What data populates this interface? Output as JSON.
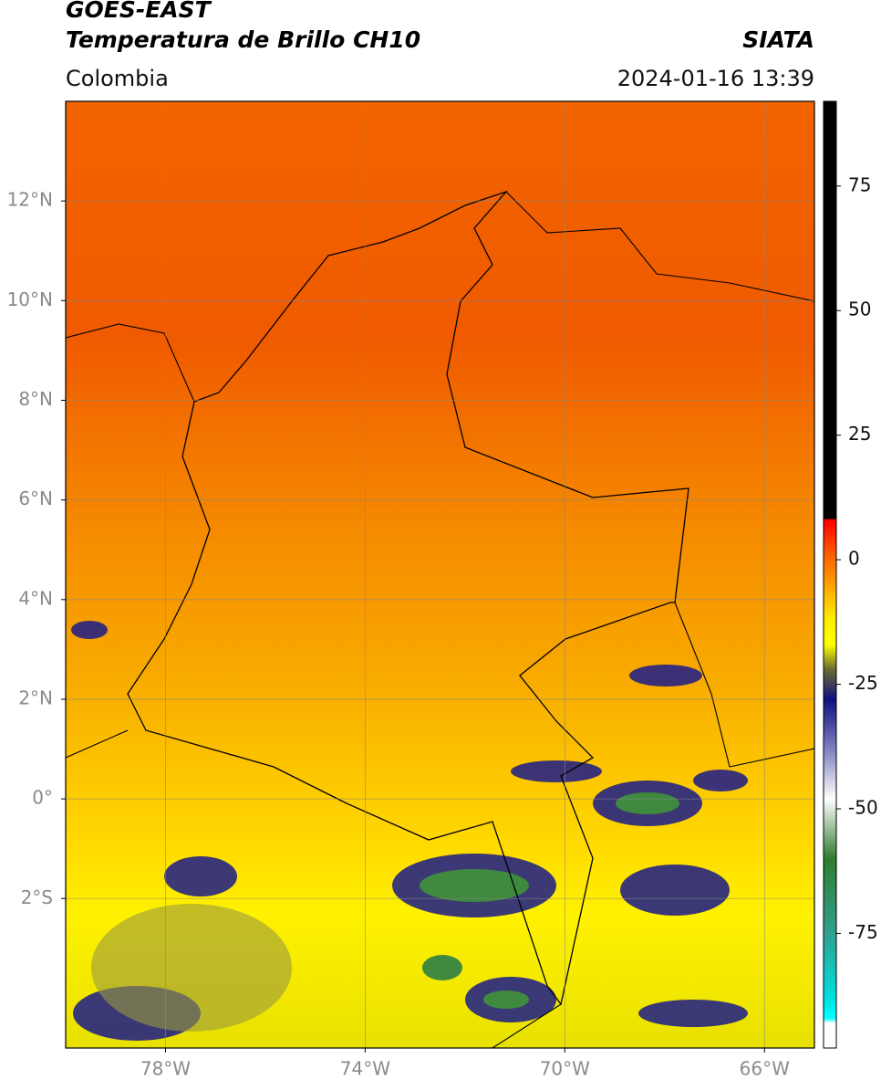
{
  "header": {
    "satellite": "GOES-EAST",
    "product": "Temperatura de Brillo CH10",
    "source": "SIATA",
    "region": "Colombia",
    "timestamp": "2024-01-16 13:39"
  },
  "map": {
    "lonlim": [
      -80,
      -65
    ],
    "latlim": [
      -5,
      14
    ],
    "lonticks": [
      {
        "value": -78,
        "label": "78°W"
      },
      {
        "value": -74,
        "label": "74°W"
      },
      {
        "value": -70,
        "label": "70°W"
      },
      {
        "value": -66,
        "label": "66°W"
      }
    ],
    "latticks": [
      {
        "value": 12,
        "label": "12°N"
      },
      {
        "value": 10,
        "label": "10°N"
      },
      {
        "value": 8,
        "label": "8°N"
      },
      {
        "value": 6,
        "label": "6°N"
      },
      {
        "value": 4,
        "label": "4°N"
      },
      {
        "value": 2,
        "label": "2°N"
      },
      {
        "value": 0,
        "label": "0°"
      },
      {
        "value": -2,
        "label": "2°S"
      }
    ],
    "grid": true
  },
  "colorbar": {
    "lim": [
      -98,
      92
    ],
    "ticks": [
      75,
      50,
      25,
      0,
      -25,
      -50,
      -75
    ],
    "colormap": [
      {
        "value": 92,
        "color": "#000000"
      },
      {
        "value": 8.3,
        "color": "#000000"
      },
      {
        "value": 8,
        "color": "#ff0000"
      },
      {
        "value": 0,
        "color": "#ff6a00"
      },
      {
        "value": -12,
        "color": "#ffee00"
      },
      {
        "value": -17,
        "color": "#ffff00"
      },
      {
        "value": -22,
        "color": "#6b6b30"
      },
      {
        "value": -28,
        "color": "#101080"
      },
      {
        "value": -38,
        "color": "#8080c0"
      },
      {
        "value": -48,
        "color": "#ffffff"
      },
      {
        "value": -60,
        "color": "#2e7d2e"
      },
      {
        "value": -75,
        "color": "#30a090"
      },
      {
        "value": -88,
        "color": "#00e0e0"
      },
      {
        "value": -92,
        "color": "#00ffff"
      },
      {
        "value": -93,
        "color": "#ffffff"
      },
      {
        "value": -98,
        "color": "#ffffff"
      }
    ]
  }
}
